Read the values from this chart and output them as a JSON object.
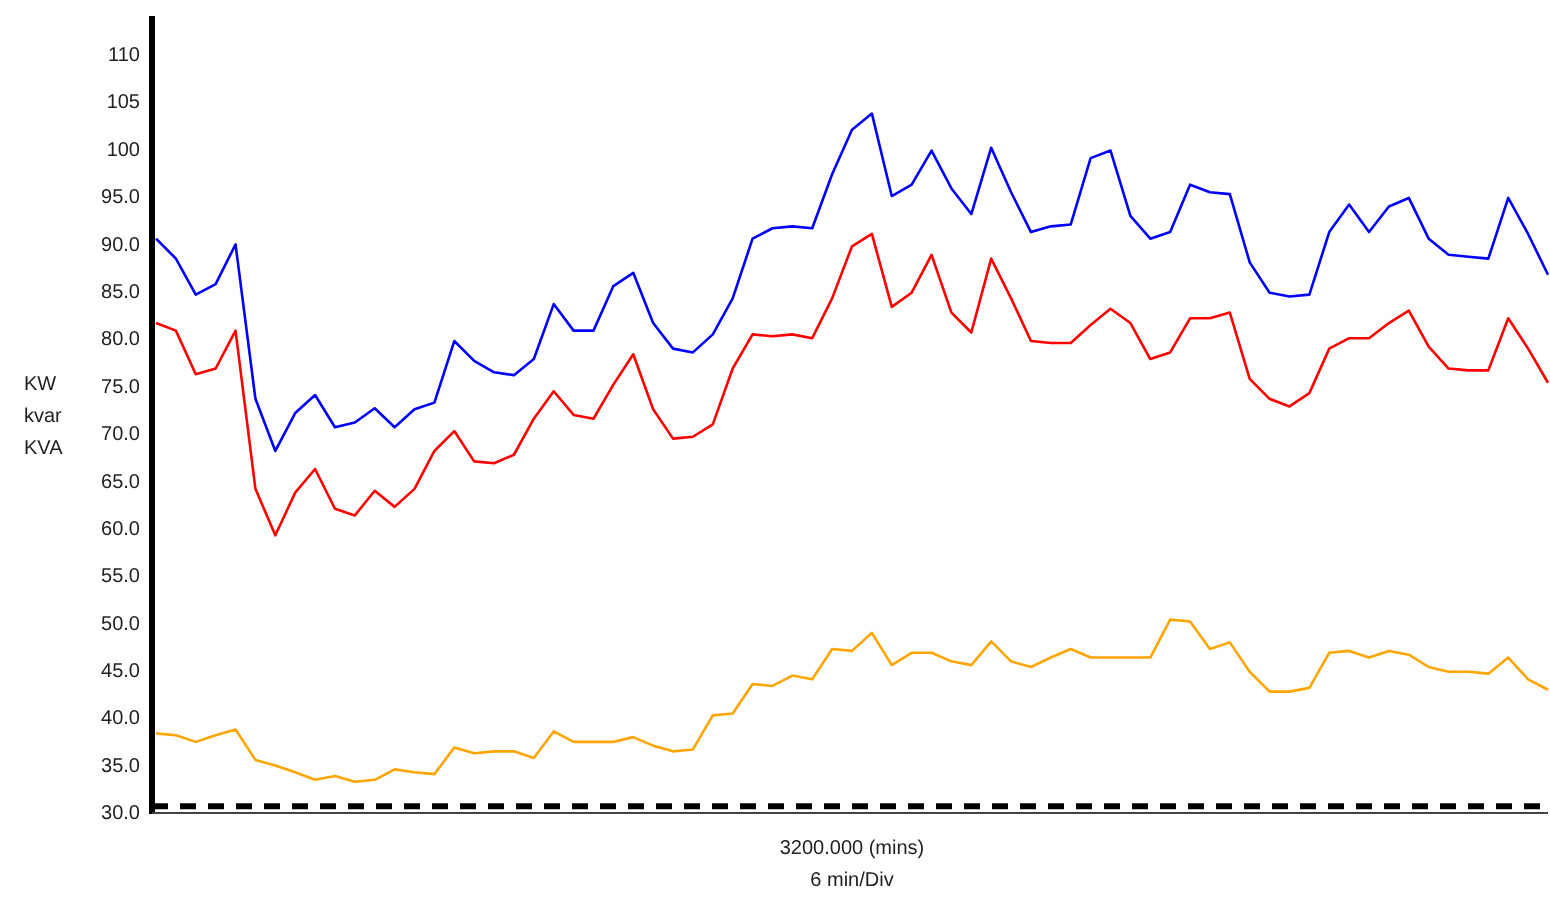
{
  "chart_data": {
    "type": "line",
    "xlabel": "3200.000 (mins)",
    "ylabel": "KW kvar KVA",
    "annotations": [
      "6 min/Div"
    ],
    "categories": [
      null,
      null,
      null,
      null,
      null,
      null,
      null,
      null,
      null,
      null,
      null,
      null,
      null,
      null,
      null,
      null,
      null,
      null,
      null,
      null,
      null,
      null,
      null,
      null,
      null,
      null,
      null,
      null,
      null,
      null,
      null,
      null,
      null,
      null,
      null,
      null,
      null,
      null,
      null,
      null,
      null,
      null,
      null,
      null,
      null,
      null,
      null,
      null,
      null,
      null,
      null,
      null,
      null,
      null,
      null,
      null,
      null,
      null,
      null,
      null,
      null,
      null,
      null,
      null,
      null,
      null,
      null,
      null,
      null,
      null,
      null
    ],
    "ylim": [
      30,
      114
    ],
    "yticks": [
      {
        "value": 30,
        "label": "30.0"
      },
      {
        "value": 35,
        "label": "35.0"
      },
      {
        "value": 40,
        "label": "40.0"
      },
      {
        "value": 45,
        "label": "45.0"
      },
      {
        "value": 50,
        "label": "50.0"
      },
      {
        "value": 55,
        "label": "55.0"
      },
      {
        "value": 60,
        "label": "60.0"
      },
      {
        "value": 65,
        "label": "65.0"
      },
      {
        "value": 70,
        "label": "70.0"
      },
      {
        "value": 75,
        "label": "75.0"
      },
      {
        "value": 80,
        "label": "80.0"
      },
      {
        "value": 85,
        "label": "85.0"
      },
      {
        "value": 90,
        "label": "90.0"
      },
      {
        "value": 95,
        "label": "95.0"
      },
      100,
      105,
      110
    ],
    "grid": false,
    "marker": "none",
    "line_style": "solid",
    "ref_lines": [
      {
        "axis": "y",
        "value": 30.6,
        "color": "#000000",
        "line_style": "dashed"
      }
    ],
    "series": [
      {
        "color": "#0000ff",
        "values": [
          90.5,
          88.4,
          84.6,
          85.7,
          89.9,
          73.6,
          68.1,
          72.1,
          74.0,
          70.6,
          71.1,
          72.6,
          70.6,
          72.5,
          73.2,
          79.7,
          77.6,
          76.4,
          76.1,
          77.8,
          83.6,
          80.8,
          80.8,
          85.5,
          86.9,
          81.6,
          78.9,
          78.5,
          80.4,
          84.2,
          90.5,
          91.6,
          91.8,
          91.6,
          97.3,
          102.0,
          103.7,
          95.0,
          96.2,
          99.8,
          95.8,
          93.1,
          100.1,
          95.4,
          91.2,
          91.8,
          92.0,
          99.0,
          99.8,
          92.9,
          90.5,
          91.2,
          96.2,
          95.4,
          95.2,
          88.0,
          84.8,
          84.4,
          84.6,
          91.2,
          94.1,
          91.2,
          93.9,
          94.8,
          90.5,
          88.8,
          88.6,
          88.4,
          94.8,
          91.0,
          86.7
        ]
      },
      {
        "color": "#ff0000",
        "values": [
          81.6,
          80.8,
          76.2,
          76.8,
          80.8,
          64.1,
          59.2,
          63.7,
          66.2,
          62.0,
          61.3,
          63.9,
          62.2,
          64.1,
          68.1,
          70.2,
          67.0,
          66.8,
          67.7,
          71.5,
          74.4,
          71.9,
          71.5,
          75.1,
          78.3,
          72.5,
          69.4,
          69.6,
          70.9,
          76.8,
          80.4,
          80.2,
          80.4,
          80.0,
          84.2,
          89.7,
          91.0,
          83.3,
          84.8,
          88.8,
          82.7,
          80.6,
          88.4,
          84.2,
          79.7,
          79.5,
          79.5,
          81.4,
          83.1,
          81.6,
          77.8,
          78.5,
          82.1,
          82.1,
          82.7,
          75.7,
          73.6,
          72.8,
          74.2,
          78.9,
          80.0,
          80.0,
          81.6,
          82.9,
          79.1,
          76.8,
          76.6,
          76.6,
          82.1,
          78.9,
          75.3
        ]
      },
      {
        "color": "#ffa500",
        "values": [
          38.3,
          38.1,
          37.4,
          38.1,
          38.7,
          35.5,
          34.9,
          34.2,
          33.4,
          33.8,
          33.2,
          33.4,
          34.5,
          34.2,
          34.0,
          36.8,
          36.2,
          36.4,
          36.4,
          35.7,
          38.5,
          37.4,
          37.4,
          37.4,
          37.9,
          37.0,
          36.4,
          36.6,
          40.2,
          40.4,
          43.5,
          43.3,
          44.4,
          44.0,
          47.2,
          47.0,
          48.9,
          45.5,
          46.8,
          46.8,
          45.9,
          45.5,
          48.0,
          45.9,
          45.3,
          46.3,
          47.2,
          46.3,
          46.3,
          46.3,
          46.3,
          50.3,
          50.1,
          47.2,
          47.9,
          44.8,
          42.7,
          42.7,
          43.1,
          46.8,
          47.0,
          46.3,
          47.0,
          46.6,
          45.3,
          44.8,
          44.8,
          44.6,
          46.3,
          44.0,
          42.9
        ]
      }
    ]
  }
}
